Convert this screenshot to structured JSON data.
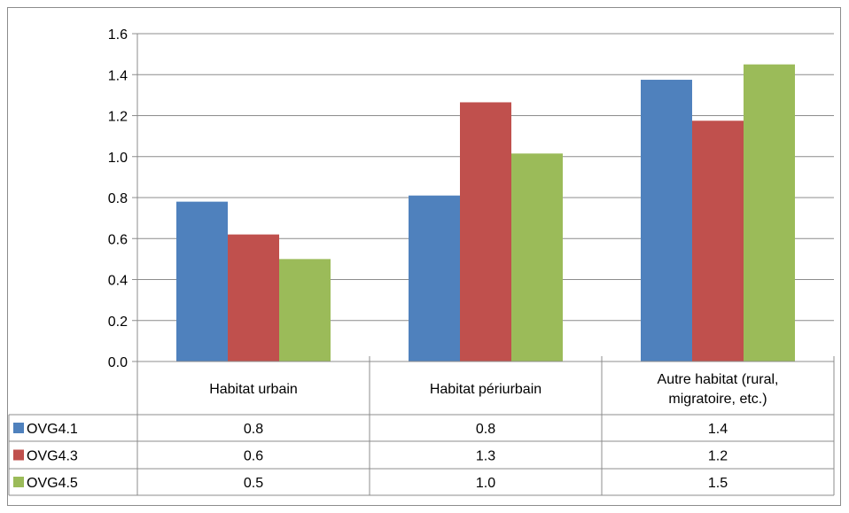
{
  "chart_data": {
    "type": "bar",
    "categories": [
      "Habitat urbain",
      "Habitat périurbain",
      "Autre habitat (rural,\nmigratoire, etc.)"
    ],
    "category_lines": [
      [
        "Habitat urbain"
      ],
      [
        "Habitat périurbain"
      ],
      [
        "Autre habitat (rural,",
        "migratoire, etc.)"
      ]
    ],
    "series": [
      {
        "name": "OVG4.1",
        "color": "#4f81bd",
        "values": [
          0.78,
          0.81,
          1.375
        ],
        "table_labels": [
          "0.8",
          "0.8",
          "1.4"
        ]
      },
      {
        "name": "OVG4.3",
        "color": "#c0504d",
        "values": [
          0.62,
          1.265,
          1.175
        ],
        "table_labels": [
          "0.6",
          "1.3",
          "1.2"
        ]
      },
      {
        "name": "OVG4.5",
        "color": "#9bbb59",
        "values": [
          0.5,
          1.015,
          1.45
        ],
        "table_labels": [
          "0.5",
          "1.0",
          "1.5"
        ]
      }
    ],
    "ylim": [
      0,
      1.6
    ],
    "yticks": [
      "0.0",
      "0.2",
      "0.4",
      "0.6",
      "0.8",
      "1.0",
      "1.2",
      "1.4",
      "1.6"
    ],
    "grid": true,
    "legend_placement": "data-table",
    "title": "",
    "xlabel": "",
    "ylabel": ""
  }
}
